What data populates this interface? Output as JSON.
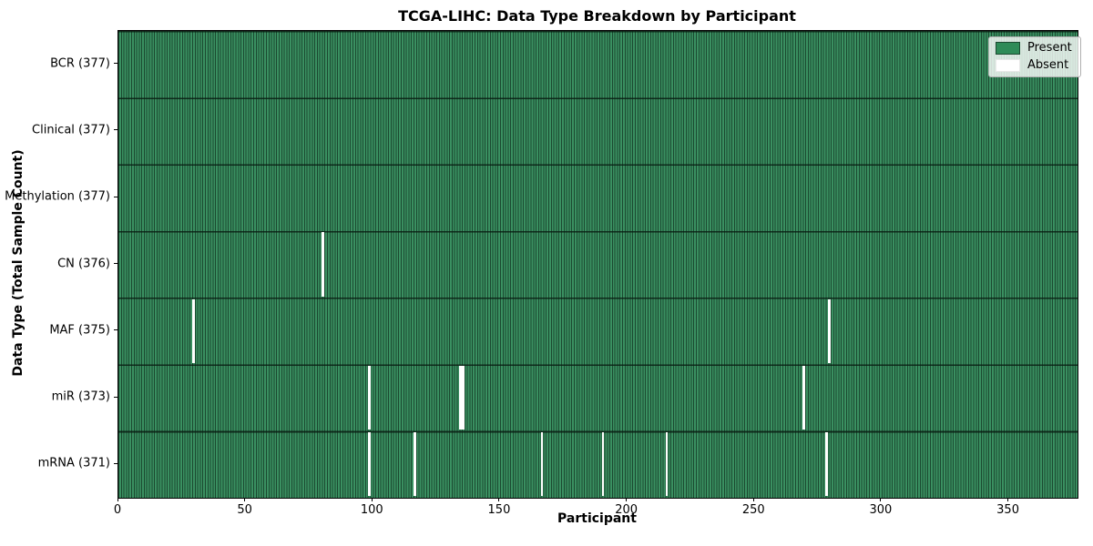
{
  "chart_data": {
    "type": "heatmap",
    "title": "TCGA-LIHC: Data Type Breakdown by Participant",
    "xlabel": "Participant",
    "ylabel": "Data Type (Total Sample Count)",
    "x_ticks": [
      0,
      50,
      100,
      150,
      200,
      250,
      300,
      350
    ],
    "x_range": [
      0,
      377
    ],
    "n_participants": 377,
    "grid": "cell-edges",
    "rows": [
      {
        "label": "BCR (377)",
        "data_type": "BCR",
        "total": 377,
        "absent_participants": []
      },
      {
        "label": "Clinical (377)",
        "data_type": "Clinical",
        "total": 377,
        "absent_participants": []
      },
      {
        "label": "Methylation (377)",
        "data_type": "Methylation",
        "total": 377,
        "absent_participants": []
      },
      {
        "label": "CN (376)",
        "data_type": "CN",
        "total": 376,
        "absent_participants": [
          80
        ]
      },
      {
        "label": "MAF (375)",
        "data_type": "MAF",
        "total": 375,
        "absent_participants": [
          29,
          279
        ]
      },
      {
        "label": "miR (373)",
        "data_type": "miR",
        "total": 373,
        "absent_participants": [
          98,
          134,
          135,
          269
        ]
      },
      {
        "label": "mRNA (371)",
        "data_type": "mRNA",
        "total": 371,
        "absent_participants": [
          98,
          116,
          166,
          190,
          215,
          278
        ]
      }
    ],
    "legend": {
      "position": "upper right",
      "entries": [
        {
          "label": "Present",
          "color": "#2e8b57"
        },
        {
          "label": "Absent",
          "color": "#ffffff"
        }
      ]
    },
    "colors": {
      "present": "#2e8b57",
      "absent": "#ffffff",
      "cell_edge": "#1b4930",
      "row_separator": "#112d1d"
    }
  }
}
